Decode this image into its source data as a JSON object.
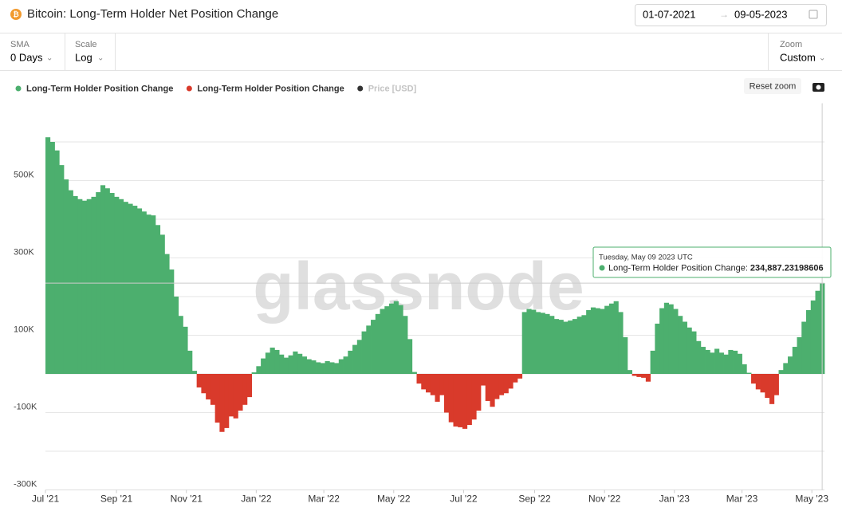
{
  "header": {
    "title": "Bitcoin: Long-Term Holder Net Position Change",
    "date_from": "01-07-2021",
    "date_to": "09-05-2023"
  },
  "controls": [
    {
      "label": "SMA",
      "value": "0 Days"
    },
    {
      "label": "Scale",
      "value": "Log"
    },
    {
      "label": "Zoom",
      "value": "Custom"
    }
  ],
  "chart_data": {
    "type": "bar",
    "watermark": "glassnode",
    "reset_button": "Reset zoom",
    "legend": [
      {
        "name": "Long-Term Holder Position Change",
        "color": "#4caf6e"
      },
      {
        "name": "Long-Term Holder Position Change",
        "color": "#d93a2b"
      },
      {
        "name": "Price [USD]",
        "color": "#333333",
        "hidden": true
      }
    ],
    "values": [
      612000,
      600000,
      578000,
      540000,
      503000,
      475000,
      460000,
      452000,
      448000,
      452000,
      458000,
      470000,
      488000,
      480000,
      468000,
      458000,
      452000,
      445000,
      440000,
      435000,
      428000,
      420000,
      412000,
      410000,
      385000,
      360000,
      310000,
      270000,
      200000,
      150000,
      122000,
      60000,
      8000,
      -35000,
      -50000,
      -66000,
      -80000,
      -126000,
      -150000,
      -140000,
      -110000,
      -115000,
      -95000,
      -80000,
      -60000,
      4000,
      20000,
      40000,
      55000,
      68000,
      62000,
      50000,
      42000,
      48000,
      58000,
      52000,
      45000,
      38000,
      35000,
      30000,
      28000,
      33000,
      30000,
      28000,
      38000,
      45000,
      60000,
      75000,
      88000,
      110000,
      125000,
      140000,
      155000,
      168000,
      175000,
      182000,
      188000,
      178000,
      150000,
      90000,
      5000,
      -25000,
      -40000,
      -48000,
      -55000,
      -72000,
      -55000,
      -100000,
      -125000,
      -136000,
      -138000,
      -142000,
      -132000,
      -118000,
      -95000,
      -30000,
      -70000,
      -85000,
      -65000,
      -55000,
      -50000,
      -38000,
      -22000,
      -12000,
      160000,
      168000,
      166000,
      160000,
      158000,
      155000,
      150000,
      142000,
      140000,
      135000,
      138000,
      142000,
      148000,
      152000,
      165000,
      172000,
      170000,
      168000,
      176000,
      182000,
      188000,
      160000,
      95000,
      10000,
      -5000,
      -8000,
      -10000,
      -20000,
      60000,
      130000,
      170000,
      184000,
      180000,
      168000,
      150000,
      135000,
      120000,
      110000,
      85000,
      70000,
      62000,
      55000,
      65000,
      55000,
      50000,
      62000,
      60000,
      52000,
      25000,
      3000,
      -25000,
      -40000,
      -48000,
      -62000,
      -78000,
      -55000,
      10000,
      28000,
      45000,
      70000,
      95000,
      135000,
      165000,
      190000,
      215000,
      234887.23198606
    ],
    "xlim": [
      0,
      170
    ],
    "xticks": [
      {
        "value": 0,
        "label": "Jul '21"
      },
      {
        "value": 15.5,
        "label": "Sep '21"
      },
      {
        "value": 30.75,
        "label": "Nov '21"
      },
      {
        "value": 46,
        "label": "Jan '22"
      },
      {
        "value": 60.75,
        "label": "Mar '22"
      },
      {
        "value": 76,
        "label": "May '22"
      },
      {
        "value": 91.25,
        "label": "Jul '22"
      },
      {
        "value": 106.75,
        "label": "Sep '22"
      },
      {
        "value": 122,
        "label": "Nov '22"
      },
      {
        "value": 137.25,
        "label": "Jan '23"
      },
      {
        "value": 152,
        "label": "Mar '23"
      },
      {
        "value": 167.25,
        "label": "May '23"
      }
    ],
    "ylim": [
      -300000,
      700000
    ],
    "yticks": [
      {
        "value": 500000,
        "label": "500K"
      },
      {
        "value": 300000,
        "label": "300K"
      },
      {
        "value": 100000,
        "label": "100K"
      },
      {
        "value": -100000,
        "label": "-100K"
      },
      {
        "value": -300000,
        "label": "-300K"
      }
    ],
    "grid": true,
    "tooltip": {
      "title": "Tuesday, May 09 2023 UTC",
      "series_label": "Long-Term Holder Position Change:",
      "value_label": "234,887.23198606"
    }
  }
}
